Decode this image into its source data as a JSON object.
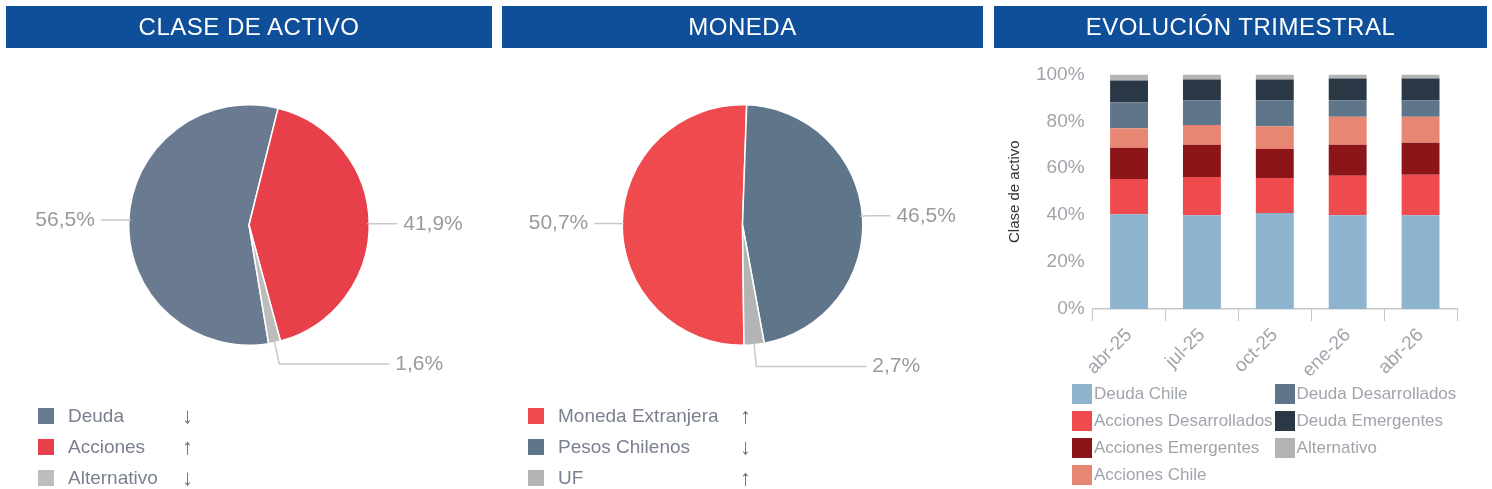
{
  "chart_data": [
    {
      "type": "pie",
      "title": "CLASE DE ACTIVO",
      "categories": [
        "Deuda",
        "Acciones",
        "Alternativo"
      ],
      "values": [
        56.5,
        41.9,
        1.6
      ],
      "colors": [
        "#6a7a90",
        "#e8404a",
        "#bdbdbd"
      ],
      "value_labels": [
        "56,5%",
        "41,9%",
        "1,6%"
      ],
      "legend": "bottom left",
      "annotations": [
        "↓",
        "↑",
        "↓"
      ]
    },
    {
      "type": "pie",
      "title": "MONEDA",
      "categories": [
        "Moneda Extranjera",
        "Pesos Chilenos",
        "UF"
      ],
      "values": [
        50.7,
        46.5,
        2.7
      ],
      "colors": [
        "#ef4a4e",
        "#5f7589",
        "#b3b5b5"
      ],
      "value_labels": [
        "50,7%",
        "46,5%",
        "2,7%"
      ],
      "legend": "bottom left",
      "annotations": [
        "↑",
        "↓",
        "↑"
      ]
    },
    {
      "type": "bar",
      "stacked": true,
      "title": "EVOLUCIÓN TRIMESTRAL",
      "ylabel": "Clase de activo",
      "categories": [
        "abr-25",
        "jul-25",
        "oct-25",
        "ene-26",
        "abr-26"
      ],
      "series": [
        {
          "name": "Deuda Chile",
          "color": "#8eb3cf",
          "values": [
            40.4,
            40.0,
            40.9,
            40.0,
            40.0
          ]
        },
        {
          "name": "Acciones Desarrollados",
          "color": "#ef4a4e",
          "values": [
            15.0,
            16.3,
            15.0,
            16.8,
            17.2
          ]
        },
        {
          "name": "Acciones Emergentes",
          "color": "#8b1519",
          "values": [
            13.3,
            13.7,
            12.3,
            13.2,
            13.7
          ]
        },
        {
          "name": "Acciones Chile",
          "color": "#e88674",
          "values": [
            8.4,
            8.4,
            9.7,
            11.9,
            11.0
          ]
        },
        {
          "name": "Deuda Desarrollados",
          "color": "#5f7589",
          "values": [
            11.0,
            10.6,
            11.1,
            7.1,
            7.1
          ]
        },
        {
          "name": "Deuda Emergentes",
          "color": "#2a3744",
          "values": [
            9.3,
            8.8,
            8.8,
            9.2,
            9.2
          ]
        },
        {
          "name": "Alternativo",
          "color": "#b3b5b5",
          "values": [
            2.6,
            2.2,
            2.2,
            1.8,
            1.8
          ]
        }
      ],
      "ylim": [
        0,
        100
      ],
      "yticks": [
        {
          "value": 0,
          "label": "0%"
        },
        {
          "value": 20,
          "label": "20%"
        },
        {
          "value": 40,
          "label": "40%"
        },
        {
          "value": 60,
          "label": "60%"
        },
        {
          "value": 80,
          "label": "80%"
        },
        {
          "value": 100,
          "label": "100%"
        }
      ],
      "grid": false,
      "legend": "bottom"
    }
  ]
}
